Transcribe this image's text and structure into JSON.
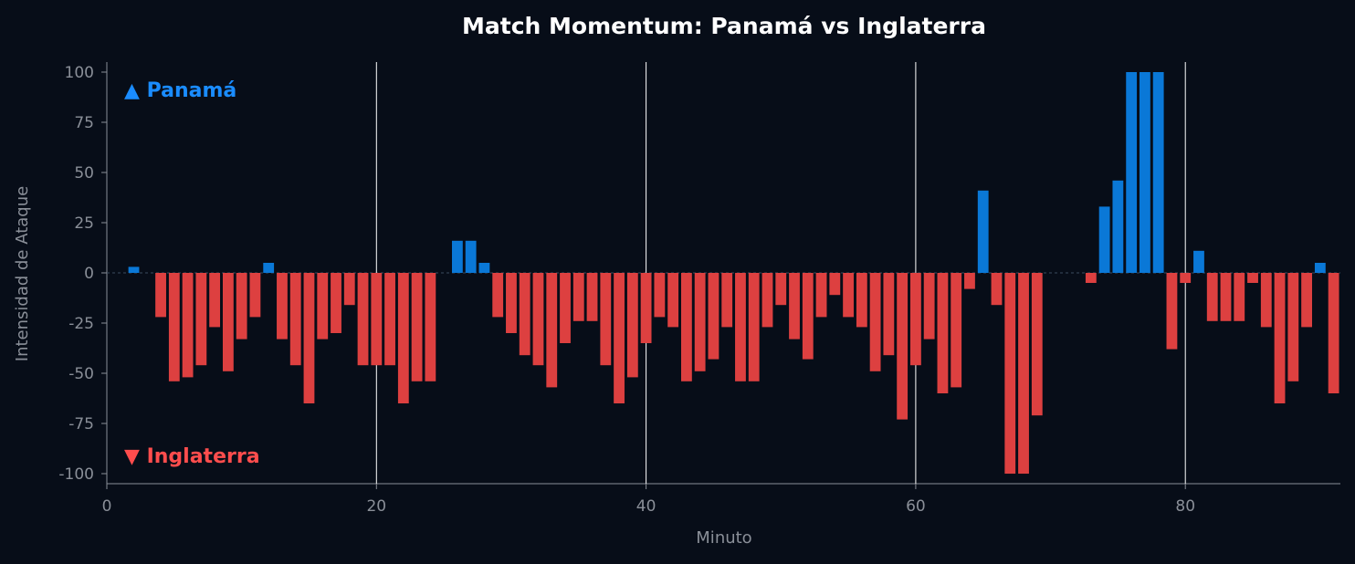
{
  "colors": {
    "background": "#070d18",
    "home": "#0a78d7",
    "away": "#dd4040",
    "home_label": "#1a8cff",
    "away_label": "#ff4d4d",
    "axis_text": "#8a8f98",
    "title": "#ffffff",
    "halftime_lines": "#ffffff",
    "zero_line": "#3a4a5e"
  },
  "chart_data": {
    "type": "bar",
    "title": "Match Momentum: Panamá vs Inglaterra",
    "xlabel": "Minuto",
    "ylabel": "Intensidad de Ataque",
    "xlim": [
      0,
      91.5
    ],
    "ylim": [
      -105,
      105
    ],
    "xticks": [
      0,
      20,
      40,
      60,
      80
    ],
    "yticks": [
      100,
      75,
      50,
      25,
      0,
      -25,
      -50,
      -75,
      -100
    ],
    "vertical_lines": [
      20,
      40,
      60,
      80
    ],
    "grid": false,
    "legend": [
      {
        "label": "▲ Panamá",
        "position": "top-left",
        "team": "home"
      },
      {
        "label": "▼ Inglaterra",
        "position": "bottom-left",
        "team": "away"
      }
    ],
    "x": [
      2,
      4,
      5,
      6,
      7,
      8,
      9,
      10,
      11,
      12,
      13,
      14,
      15,
      16,
      17,
      18,
      19,
      20,
      21,
      22,
      23,
      24,
      26,
      27,
      28,
      29,
      30,
      31,
      32,
      33,
      34,
      35,
      36,
      37,
      38,
      39,
      40,
      41,
      42,
      43,
      44,
      45,
      46,
      47,
      48,
      49,
      50,
      51,
      52,
      53,
      54,
      55,
      56,
      57,
      58,
      59,
      60,
      61,
      62,
      63,
      64,
      65,
      66,
      67,
      68,
      69,
      73,
      74,
      75,
      76,
      77,
      78,
      79,
      80,
      81,
      82,
      83,
      84,
      85,
      86,
      87,
      88,
      89,
      90,
      91
    ],
    "values": [
      3,
      -22,
      -54,
      -52,
      -46,
      -27,
      -49,
      -33,
      -22,
      5,
      -33,
      -46,
      -65,
      -33,
      -30,
      -16,
      -46,
      -46,
      -46,
      -65,
      -54,
      -54,
      16,
      16,
      5,
      -22,
      -30,
      -41,
      -46,
      -57,
      -35,
      -24,
      -24,
      -46,
      -65,
      -52,
      -35,
      -22,
      -27,
      -54,
      -49,
      -43,
      -27,
      -54,
      -54,
      -27,
      -16,
      -33,
      -43,
      -22,
      -11,
      -22,
      -27,
      -49,
      -41,
      -73,
      -46,
      -33,
      -60,
      -57,
      -8,
      41,
      -16,
      -100,
      -100,
      -71,
      -5,
      33,
      46,
      100,
      100,
      100,
      -38,
      -5,
      11,
      -24,
      -24,
      -24,
      -5,
      -27,
      -65,
      -54,
      -27,
      5,
      -60
    ]
  }
}
